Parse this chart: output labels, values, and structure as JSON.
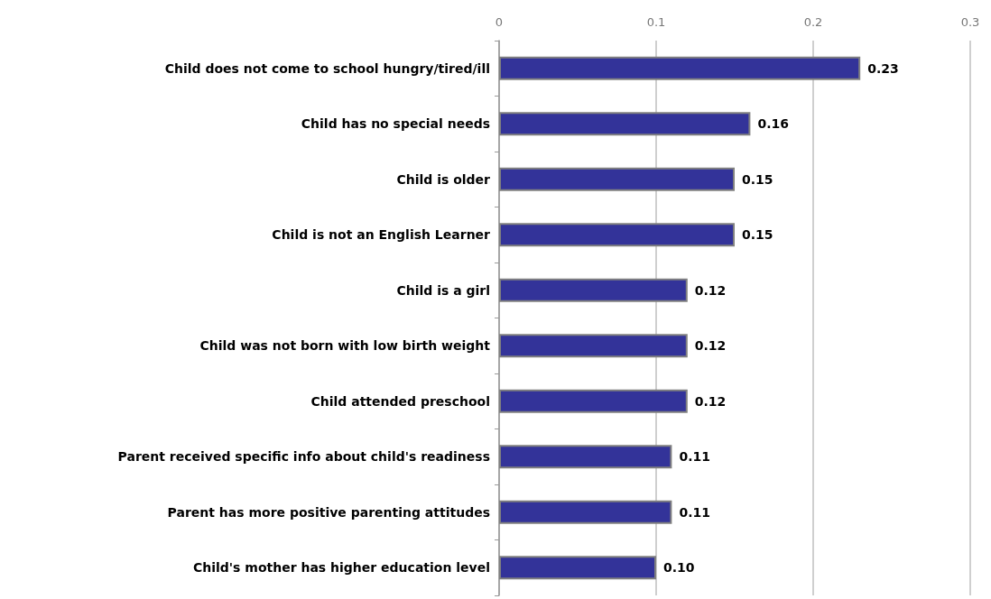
{
  "chart_data": {
    "type": "bar",
    "orientation": "horizontal",
    "categories": [
      "Child does not come to school hungry/tired/ill",
      "Child has no special needs",
      "Child is older",
      "Child is not an English Learner",
      "Child is a girl",
      "Child was not born with low birth weight",
      "Child attended preschool",
      "Parent received specific info about child's readiness",
      "Parent has more positive parenting attitudes",
      "Child's mother has higher education level"
    ],
    "values": [
      0.23,
      0.16,
      0.15,
      0.15,
      0.12,
      0.12,
      0.12,
      0.11,
      0.11,
      0.1
    ],
    "value_labels": [
      "0.23",
      "0.16",
      "0.15",
      "0.15",
      "0.12",
      "0.12",
      "0.12",
      "0.11",
      "0.11",
      "0.10"
    ],
    "color": "#333399",
    "xlim": [
      0,
      0.3
    ],
    "xticks": [
      0,
      0.1,
      0.2,
      0.3
    ],
    "grid": "x"
  }
}
